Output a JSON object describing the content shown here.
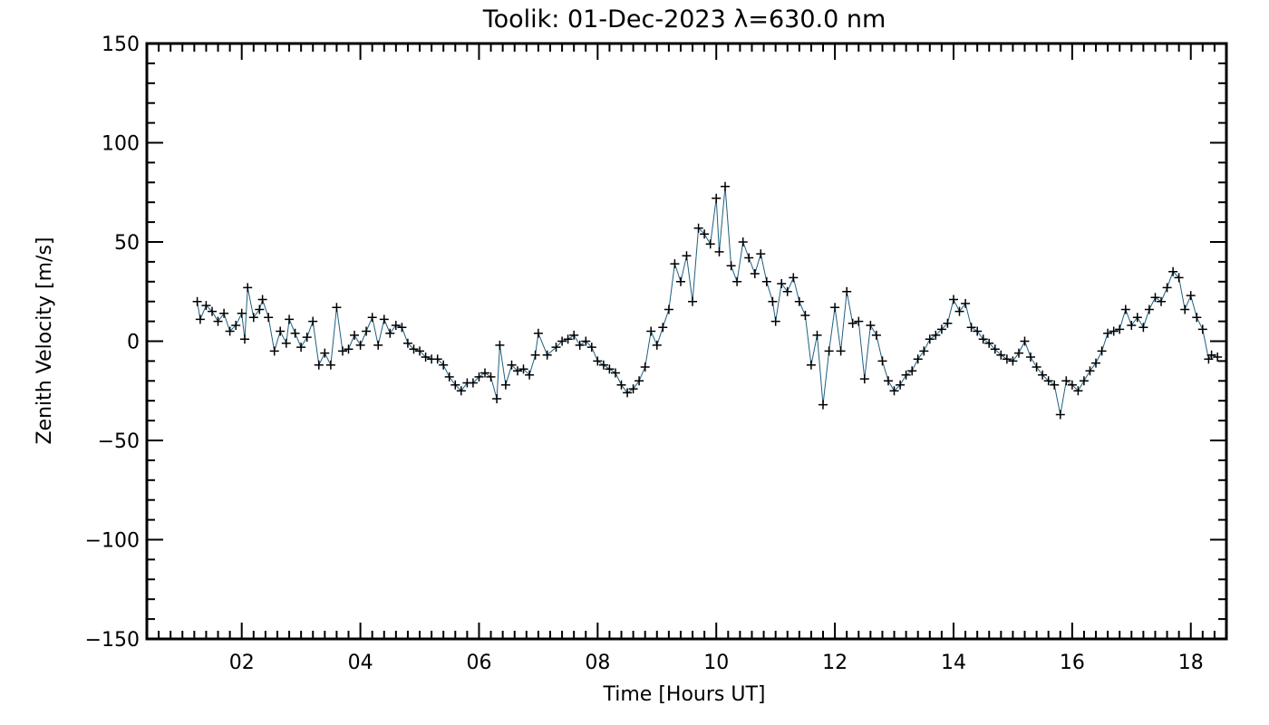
{
  "chart_data": {
    "type": "scatter",
    "title": "Toolik: 01-Dec-2023 λ=630.0 nm",
    "xlabel": "Time [Hours UT]",
    "ylabel": "Zenith Velocity [m/s]",
    "xlim": [
      0.4,
      18.6
    ],
    "ylim": [
      -150,
      150
    ],
    "x_ticks": [
      2,
      4,
      6,
      8,
      10,
      12,
      14,
      16,
      18
    ],
    "x_tick_labels": [
      "02",
      "04",
      "06",
      "08",
      "10",
      "12",
      "14",
      "16",
      "18"
    ],
    "y_ticks": [
      -150,
      -100,
      -50,
      0,
      50,
      100,
      150
    ],
    "y_tick_labels": [
      "−150",
      "−100",
      "−50",
      "0",
      "50",
      "100",
      "150"
    ],
    "grid": false,
    "colors": {
      "line": "#1f5f7f",
      "marker": "#000000"
    },
    "series": [
      {
        "line": true,
        "marker": "plus",
        "points": [
          [
            1.25,
            20
          ],
          [
            1.3,
            11
          ],
          [
            1.4,
            18
          ],
          [
            1.5,
            15
          ],
          [
            1.6,
            10
          ],
          [
            1.7,
            14
          ],
          [
            1.8,
            5
          ],
          [
            1.9,
            8
          ],
          [
            2.0,
            14
          ],
          [
            2.05,
            1
          ],
          [
            2.1,
            27
          ],
          [
            2.2,
            12
          ],
          [
            2.3,
            16
          ],
          [
            2.35,
            21
          ],
          [
            2.45,
            12
          ],
          [
            2.55,
            -5
          ],
          [
            2.65,
            5
          ],
          [
            2.75,
            -1
          ],
          [
            2.8,
            11
          ],
          [
            2.9,
            4
          ],
          [
            3.0,
            -3
          ],
          [
            3.1,
            2
          ],
          [
            3.2,
            10
          ],
          [
            3.3,
            -12
          ],
          [
            3.4,
            -6
          ],
          [
            3.5,
            -12
          ],
          [
            3.6,
            17
          ],
          [
            3.7,
            -5
          ],
          [
            3.8,
            -4
          ],
          [
            3.9,
            3
          ],
          [
            4.0,
            -2
          ],
          [
            4.1,
            5
          ],
          [
            4.2,
            12
          ],
          [
            4.3,
            -2
          ],
          [
            4.4,
            11
          ],
          [
            4.5,
            4
          ],
          [
            4.6,
            8
          ],
          [
            4.7,
            7
          ],
          [
            4.8,
            -1
          ],
          [
            4.9,
            -4
          ],
          [
            5.0,
            -5
          ],
          [
            5.1,
            -8
          ],
          [
            5.2,
            -9
          ],
          [
            5.3,
            -9
          ],
          [
            5.4,
            -12
          ],
          [
            5.5,
            -18
          ],
          [
            5.6,
            -22
          ],
          [
            5.7,
            -25
          ],
          [
            5.8,
            -21
          ],
          [
            5.9,
            -21
          ],
          [
            6.0,
            -18
          ],
          [
            6.1,
            -16
          ],
          [
            6.2,
            -18
          ],
          [
            6.3,
            -29
          ],
          [
            6.35,
            -2
          ],
          [
            6.45,
            -22
          ],
          [
            6.55,
            -12
          ],
          [
            6.65,
            -15
          ],
          [
            6.75,
            -14
          ],
          [
            6.85,
            -17
          ],
          [
            6.95,
            -7
          ],
          [
            7.0,
            4
          ],
          [
            7.15,
            -7
          ],
          [
            7.3,
            -3
          ],
          [
            7.4,
            0
          ],
          [
            7.5,
            1
          ],
          [
            7.6,
            3
          ],
          [
            7.7,
            -2
          ],
          [
            7.8,
            0
          ],
          [
            7.9,
            -3
          ],
          [
            8.0,
            -10
          ],
          [
            8.1,
            -12
          ],
          [
            8.2,
            -14
          ],
          [
            8.3,
            -16
          ],
          [
            8.4,
            -22
          ],
          [
            8.5,
            -26
          ],
          [
            8.6,
            -24
          ],
          [
            8.7,
            -20
          ],
          [
            8.8,
            -13
          ],
          [
            8.9,
            5
          ],
          [
            9.0,
            -2
          ],
          [
            9.1,
            7
          ],
          [
            9.2,
            16
          ],
          [
            9.3,
            39
          ],
          [
            9.4,
            30
          ],
          [
            9.5,
            43
          ],
          [
            9.6,
            20
          ],
          [
            9.7,
            57
          ],
          [
            9.8,
            54
          ],
          [
            9.9,
            49
          ],
          [
            10.0,
            72
          ],
          [
            10.05,
            45
          ],
          [
            10.15,
            78
          ],
          [
            10.25,
            38
          ],
          [
            10.35,
            30
          ],
          [
            10.45,
            50
          ],
          [
            10.55,
            42
          ],
          [
            10.65,
            34
          ],
          [
            10.75,
            44
          ],
          [
            10.85,
            30
          ],
          [
            10.95,
            20
          ],
          [
            11.0,
            10
          ],
          [
            11.1,
            29
          ],
          [
            11.2,
            25
          ],
          [
            11.3,
            32
          ],
          [
            11.4,
            20
          ],
          [
            11.5,
            13
          ],
          [
            11.6,
            -12
          ],
          [
            11.7,
            3
          ],
          [
            11.8,
            -32
          ],
          [
            11.9,
            -5
          ],
          [
            12.0,
            17
          ],
          [
            12.1,
            -5
          ],
          [
            12.2,
            25
          ],
          [
            12.3,
            9
          ],
          [
            12.4,
            10
          ],
          [
            12.5,
            -19
          ],
          [
            12.6,
            8
          ],
          [
            12.7,
            3
          ],
          [
            12.8,
            -10
          ],
          [
            12.9,
            -20
          ],
          [
            13.0,
            -25
          ],
          [
            13.1,
            -22
          ],
          [
            13.2,
            -17
          ],
          [
            13.3,
            -15
          ],
          [
            13.4,
            -9
          ],
          [
            13.5,
            -5
          ],
          [
            13.6,
            1
          ],
          [
            13.7,
            3
          ],
          [
            13.8,
            6
          ],
          [
            13.9,
            9
          ],
          [
            14.0,
            21
          ],
          [
            14.1,
            15
          ],
          [
            14.2,
            19
          ],
          [
            14.3,
            7
          ],
          [
            14.4,
            5
          ],
          [
            14.5,
            1
          ],
          [
            14.6,
            -1
          ],
          [
            14.7,
            -4
          ],
          [
            14.8,
            -7
          ],
          [
            14.9,
            -9
          ],
          [
            15.0,
            -10
          ],
          [
            15.1,
            -6
          ],
          [
            15.2,
            0
          ],
          [
            15.3,
            -8
          ],
          [
            15.4,
            -13
          ],
          [
            15.5,
            -17
          ],
          [
            15.6,
            -20
          ],
          [
            15.7,
            -22
          ],
          [
            15.8,
            -37
          ],
          [
            15.9,
            -20
          ],
          [
            16.0,
            -22
          ],
          [
            16.1,
            -25
          ],
          [
            16.2,
            -20
          ],
          [
            16.3,
            -15
          ],
          [
            16.4,
            -11
          ],
          [
            16.5,
            -5
          ],
          [
            16.6,
            4
          ],
          [
            16.7,
            5
          ],
          [
            16.8,
            6
          ],
          [
            16.9,
            16
          ],
          [
            17.0,
            8
          ],
          [
            17.1,
            12
          ],
          [
            17.2,
            7
          ],
          [
            17.3,
            16
          ],
          [
            17.4,
            22
          ],
          [
            17.5,
            20
          ],
          [
            17.6,
            27
          ],
          [
            17.7,
            35
          ],
          [
            17.8,
            32
          ],
          [
            17.9,
            16
          ],
          [
            18.0,
            23
          ],
          [
            18.1,
            12
          ],
          [
            18.2,
            6
          ],
          [
            18.3,
            -9
          ],
          [
            18.35,
            -7
          ],
          [
            18.45,
            -8
          ]
        ]
      }
    ]
  }
}
